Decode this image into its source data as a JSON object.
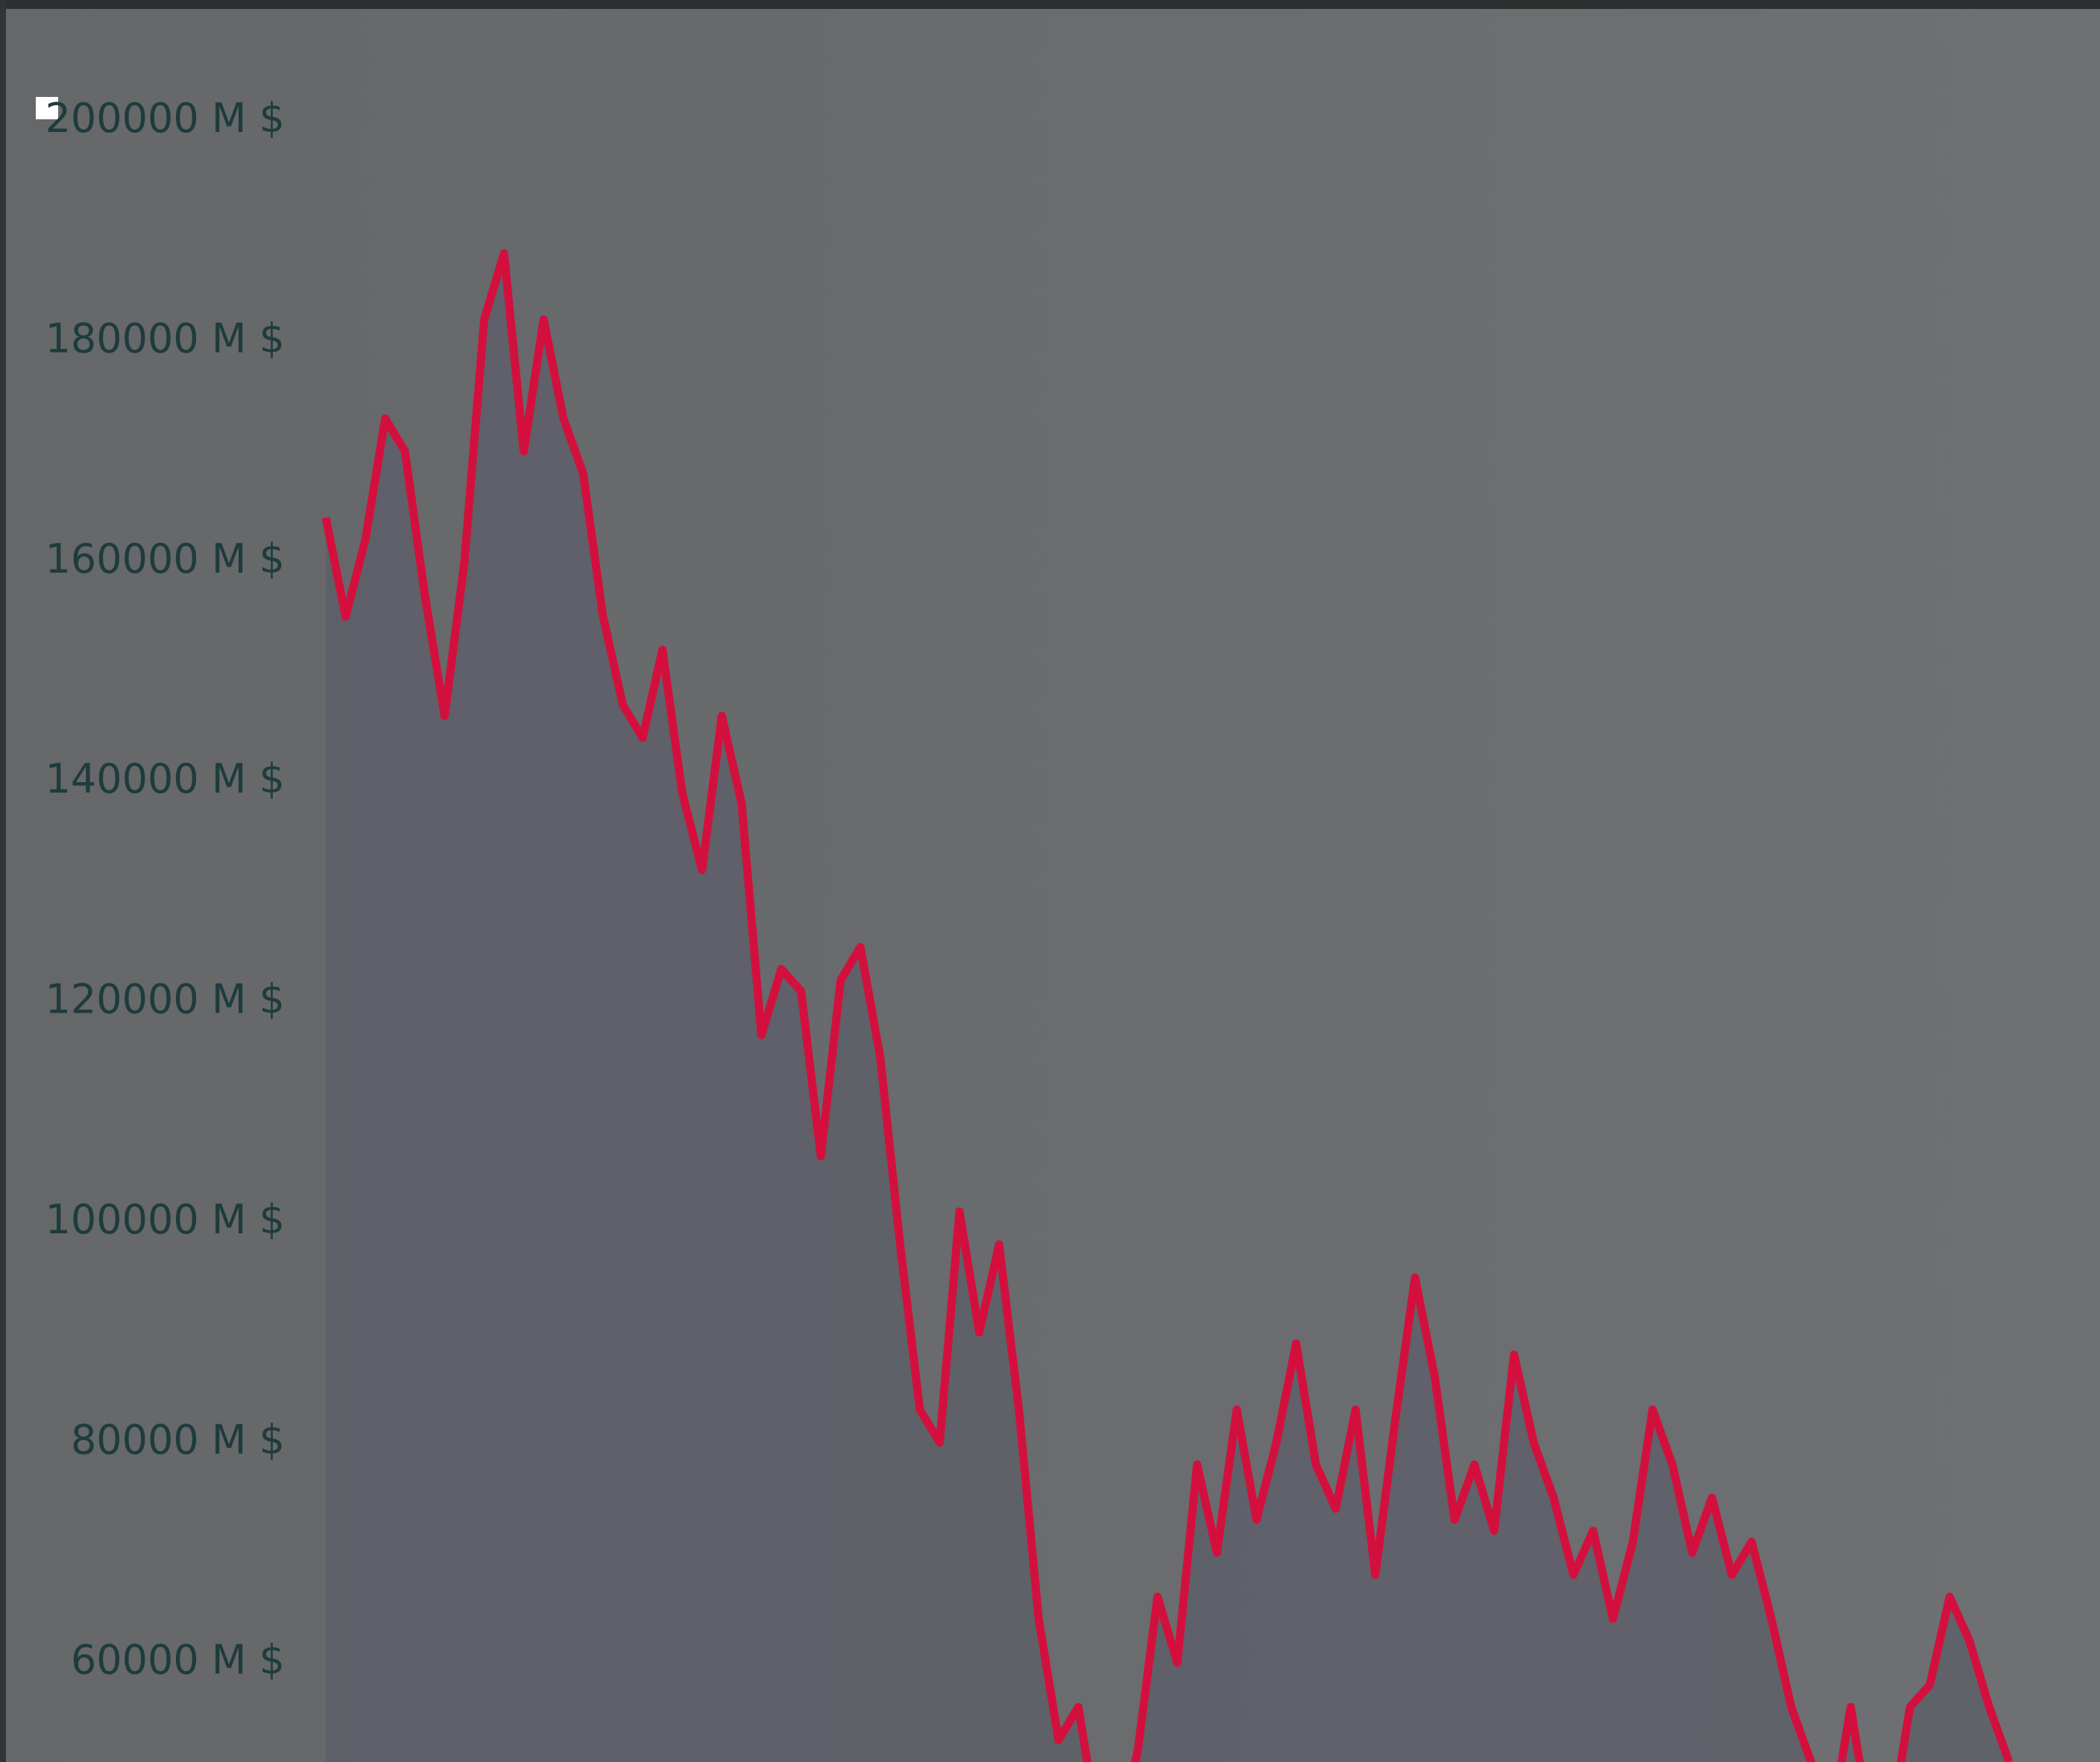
{
  "chart_data": {
    "type": "area-line",
    "categories": [
      null,
      null,
      null,
      null,
      null,
      null,
      null,
      null,
      null,
      null,
      null,
      null,
      null,
      null,
      null,
      null,
      null,
      null,
      null,
      null,
      null,
      null,
      null,
      null,
      null,
      null,
      null,
      null,
      null,
      null,
      null,
      null,
      null,
      null,
      null,
      null,
      null,
      null,
      null,
      null,
      null,
      null,
      null,
      null,
      null,
      null,
      null,
      null,
      null,
      null,
      null,
      null,
      null,
      null,
      null,
      null,
      null,
      null,
      null,
      null,
      null,
      null,
      null,
      null,
      null,
      null,
      null,
      null,
      null,
      null,
      null,
      null,
      null,
      null,
      null,
      null,
      null,
      null,
      null,
      null,
      null,
      null,
      null,
      null,
      null,
      null
    ],
    "values": [
      164000,
      155000,
      162000,
      173000,
      170000,
      157000,
      146000,
      160000,
      182000,
      188000,
      170000,
      182000,
      173000,
      168000,
      155000,
      147000,
      144000,
      152000,
      139000,
      132000,
      146000,
      138000,
      117000,
      123000,
      121000,
      106000,
      122000,
      125000,
      115000,
      98000,
      83000,
      80000,
      101000,
      90000,
      98000,
      83000,
      64000,
      53000,
      56000,
      45000,
      44000,
      52000,
      66000,
      60000,
      78000,
      70000,
      83000,
      73000,
      80000,
      89000,
      78000,
      74000,
      83000,
      68000,
      82000,
      95000,
      86000,
      73000,
      78000,
      72000,
      88000,
      80000,
      75000,
      68000,
      72000,
      64000,
      71000,
      83000,
      78000,
      70000,
      75000,
      68000,
      71000,
      64000,
      56000,
      51000,
      45000,
      56000,
      45000,
      45000,
      56000,
      58000,
      66000,
      62000,
      56000,
      51000
    ],
    "color": "#d3103d",
    "ylim": [
      51000,
      211000
    ],
    "yticks": [
      {
        "value": 60000,
        "label": "60000 M $"
      },
      {
        "value": 80000,
        "label": "80000 M $"
      },
      {
        "value": 100000,
        "label": "100000 M $"
      },
      {
        "value": 120000,
        "label": "120000 M $"
      },
      {
        "value": 140000,
        "label": "140000 M $"
      },
      {
        "value": 160000,
        "label": "160000 M $"
      },
      {
        "value": 180000,
        "label": "180000 M $"
      },
      {
        "value": 200000,
        "label": "200000 M $"
      }
    ],
    "grid": false
  }
}
